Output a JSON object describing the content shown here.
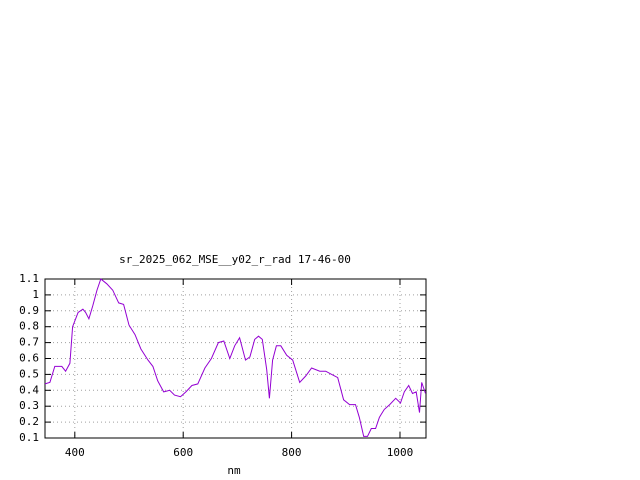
{
  "chart_data": {
    "type": "line",
    "title": "sr_2025_062_MSE__y02_r_rad 17-46-00",
    "x_label": "nm",
    "x": [
      345,
      354,
      363,
      376,
      383,
      391,
      396,
      406,
      415,
      420,
      426,
      433,
      441,
      448,
      459,
      470,
      481,
      490,
      500,
      511,
      522,
      535,
      544,
      553,
      564,
      575,
      584,
      595,
      605,
      616,
      627,
      640,
      652,
      665,
      675,
      686,
      695,
      704,
      715,
      723,
      732,
      739,
      746,
      754,
      759,
      765,
      772,
      780,
      791,
      802,
      815,
      826,
      837,
      852,
      863,
      874,
      885,
      896,
      907,
      918,
      925,
      933,
      940,
      947,
      955,
      962,
      971,
      981,
      992,
      1001,
      1008,
      1016,
      1023,
      1030,
      1036,
      1040,
      1047
    ],
    "series": [
      {
        "color": "#9400d3",
        "values": [
          0.44,
          0.45,
          0.55,
          0.55,
          0.52,
          0.57,
          0.8,
          0.89,
          0.91,
          0.89,
          0.85,
          0.93,
          1.03,
          1.1,
          1.07,
          1.03,
          0.95,
          0.94,
          0.81,
          0.75,
          0.66,
          0.59,
          0.55,
          0.46,
          0.39,
          0.4,
          0.37,
          0.36,
          0.39,
          0.43,
          0.44,
          0.54,
          0.6,
          0.7,
          0.71,
          0.6,
          0.68,
          0.73,
          0.59,
          0.61,
          0.72,
          0.74,
          0.72,
          0.53,
          0.35,
          0.59,
          0.68,
          0.68,
          0.62,
          0.59,
          0.45,
          0.49,
          0.54,
          0.52,
          0.52,
          0.5,
          0.48,
          0.34,
          0.31,
          0.31,
          0.23,
          0.11,
          0.11,
          0.16,
          0.16,
          0.23,
          0.28,
          0.31,
          0.35,
          0.32,
          0.39,
          0.43,
          0.38,
          0.39,
          0.26,
          0.45,
          0.38
        ]
      }
    ],
    "xlim": [
      345,
      1048
    ],
    "ylim": [
      0.1,
      1.1
    ],
    "xticks": [
      400,
      600,
      800,
      1000
    ],
    "yticks": [
      0.1,
      0.2,
      0.3,
      0.4,
      0.5,
      0.6,
      0.7,
      0.8,
      0.9,
      1,
      1.1
    ],
    "grid": true
  }
}
